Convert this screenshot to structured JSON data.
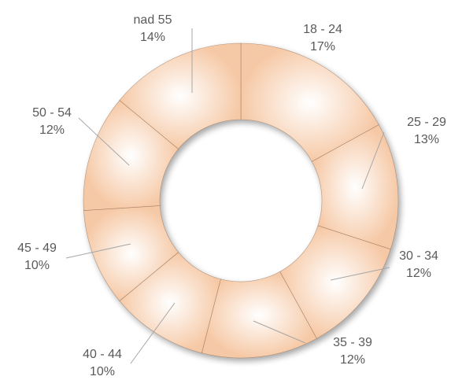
{
  "chart_data": {
    "type": "pie",
    "variant": "donut",
    "title": "",
    "categories": [
      "18 - 24",
      "25 - 29",
      "30 - 34",
      "35 - 39",
      "40 - 44",
      "45 - 49",
      "50 - 54",
      "nad 55"
    ],
    "values": [
      17,
      13,
      12,
      12,
      10,
      10,
      12,
      14
    ],
    "value_labels": [
      "17%",
      "13%",
      "12%",
      "12%",
      "10%",
      "10%",
      "12%",
      "14%"
    ],
    "unit": "%",
    "legend": "none",
    "data_labels": "outside with leader lines",
    "colors": {
      "slice_light": "#fffaf5",
      "slice_dark": "#f6c9a6",
      "edge_shadow": "#8a6a50",
      "leader": "#a6a6a6",
      "label_text": "#5a5a5a"
    }
  }
}
